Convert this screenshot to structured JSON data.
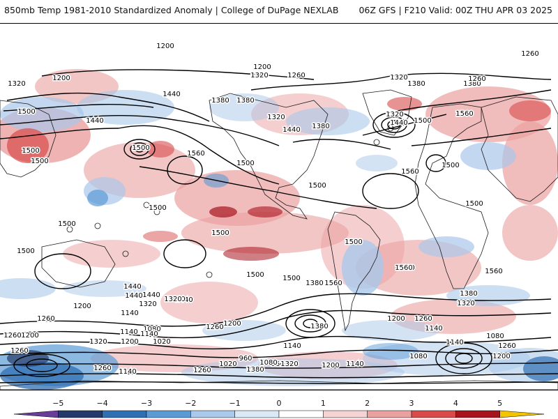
{
  "header": {
    "title_left": "850mb Temp 1981-2010 Standardized Anomaly | College of DuPage NEXLAB",
    "title_right": "06Z GFS | F210 Valid: 00Z THU APR 03 2025"
  },
  "colorbar": {
    "labels": [
      "−5",
      "−4",
      "−3",
      "−2",
      "−1",
      "0",
      "1",
      "2",
      "3",
      "4",
      "5"
    ],
    "colors": [
      "#6a3d9a",
      "#243a6b",
      "#2f6fb3",
      "#5b9bd5",
      "#a9c8ea",
      "#dbe8f5",
      "#ffffff",
      "#f6d3d3",
      "#eba0a0",
      "#d94b4b",
      "#a8141e",
      "#6b0008",
      "#f5c400"
    ]
  },
  "map": {
    "contour_labels": [
      "1200",
      "1200",
      "1260",
      "1320",
      "1200",
      "1260",
      "1320",
      "1380",
      "1320",
      "1380",
      "1260",
      "1380",
      "1440",
      "1380",
      "1500",
      "1440",
      "1500",
      "1320",
      "1440",
      "1380",
      "1320",
      "1500",
      "1560",
      "1440",
      "1500",
      "1560",
      "1500",
      "1500",
      "1560",
      "1500",
      "1500",
      "1500",
      "1500",
      "1440",
      "1500",
      "1500",
      "1500",
      "1500",
      "1500",
      "1560",
      "1500",
      "1500",
      "1440",
      "1560",
      "1380",
      "1380",
      "1320",
      "1440",
      "1560",
      "1200",
      "1320",
      "1260",
      "1140",
      "1200",
      "1260",
      "1380",
      "1260",
      "1200",
      "1140",
      "1440",
      "1380",
      "1320",
      "1080",
      "1140",
      "1140",
      "1320",
      "1200",
      "1020",
      "1260",
      "1200",
      "1260",
      "1140",
      "960",
      "1080",
      "1140",
      "1020",
      "960",
      "1080",
      "1140",
      "1200",
      "1080",
      "1200",
      "1260",
      "1080",
      "1140",
      "1260",
      "1380",
      "1320",
      "1260"
    ]
  }
}
